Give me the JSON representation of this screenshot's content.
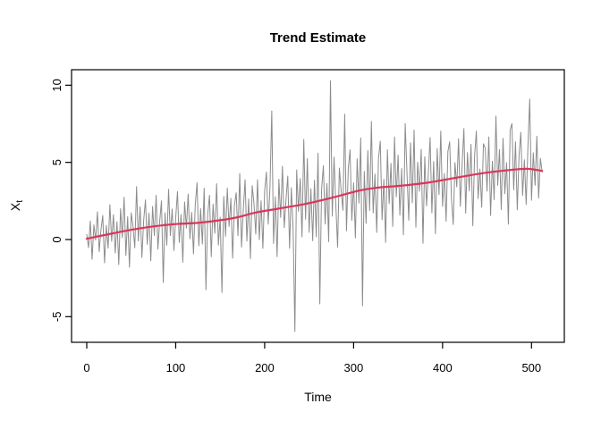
{
  "title": "Trend Estimate",
  "x_axis": {
    "label": "Time",
    "ticks": [
      0,
      100,
      200,
      300,
      400,
      500
    ]
  },
  "y_axis": {
    "label": "X",
    "label_sub": "t",
    "ticks": [
      -5,
      0,
      5,
      10
    ]
  },
  "colors": {
    "observed": "#8c8c8c",
    "trend": "#d9365b",
    "axis": "#000000",
    "background": "#ffffff"
  },
  "chart_data": {
    "type": "line",
    "title": "Trend Estimate",
    "xlabel": "Time",
    "ylabel": "X_t",
    "xlim": [
      -20,
      532
    ],
    "ylim": [
      -6.7,
      11.0
    ],
    "grid": false,
    "legend": "none",
    "x_start": 0,
    "x_step": 2,
    "n_points": 257,
    "series": [
      {
        "name": "observed",
        "style": "jagged-line",
        "color": "#8c8c8c",
        "definition": "y[i] = trend(x[i]) + noise[i]",
        "noise": [
          0.3,
          -0.6,
          1.1,
          -1.4,
          0.8,
          -0.2,
          1.6,
          -1.0,
          0.4,
          1.3,
          -1.8,
          0.6,
          -0.9,
          1.9,
          -0.5,
          1.2,
          -1.3,
          0.7,
          -2.1,
          1.5,
          -0.4,
          2.2,
          -1.6,
          0.9,
          -2.4,
          1.1,
          0.2,
          -1.2,
          2.75,
          -0.8,
          1.4,
          -1.9,
          0.5,
          1.8,
          -1.1,
          0.9,
          -2.2,
          1.3,
          -0.6,
          2.0,
          -1.5,
          0.3,
          1.6,
          -3.7,
          0.8,
          -1.3,
          2.3,
          -0.7,
          1.0,
          -1.7,
          0.4,
          2.1,
          -1.2,
          0.6,
          -2.5,
          1.4,
          -0.3,
          1.9,
          -1.0,
          0.7,
          -2.0,
          1.2,
          2.6,
          -1.5,
          0.9,
          -1.4,
          2.2,
          -4.4,
          0.5,
          1.7,
          -2.3,
          1.1,
          -0.8,
          2.4,
          -1.6,
          0.2,
          -4.7,
          1.5,
          -1.1,
          2.0,
          -0.5,
          1.3,
          -2.6,
          0.8,
          1.6,
          -1.2,
          2.8,
          -2.0,
          0.4,
          2.3,
          -1.7,
          1.0,
          -2.9,
          1.8,
          0.6,
          -1.4,
          2.1,
          -1.8,
          0.7,
          -2.4,
          1.3,
          2.5,
          -0.9,
          1.5,
          6.4,
          -2.2,
          0.8,
          -3.1,
          1.9,
          -0.6,
          2.7,
          -1.3,
          0.5,
          2.0,
          -2.7,
          1.2,
          -1.5,
          -8.15,
          2.3,
          -0.4,
          1.7,
          -2.1,
          4.2,
          -1.0,
          2.9,
          -1.9,
          0.9,
          -2.5,
          1.4,
          -2.3,
          3.1,
          -6.7,
          0.7,
          2.2,
          -1.6,
          1.0,
          -2.8,
          7.6,
          -1.2,
          2.6,
          -0.5,
          -3.3,
          1.8,
          0.3,
          -1.0,
          5.2,
          -2.4,
          1.6,
          2.8,
          -1.8,
          0.6,
          -3.0,
          2.1,
          -0.8,
          3.4,
          -7.5,
          1.2,
          -2.2,
          2.5,
          -1.4,
          4.35,
          -1.6,
          0.9,
          -2.9,
          1.9,
          3.0,
          -2.1,
          0.5,
          -3.6,
          2.4,
          -1.1,
          1.5,
          -2.6,
          3.2,
          -0.7,
          2.0,
          -1.9,
          1.1,
          -3.2,
          4.0,
          0.8,
          -2.3,
          2.7,
          -1.2,
          3.5,
          -2.8,
          1.4,
          -0.5,
          2.2,
          -3.9,
          1.7,
          -1.5,
          0.6,
          2.9,
          -2.0,
          1.3,
          -3.4,
          2.1,
          -0.9,
          3.2,
          -1.7,
          0.4,
          -2.7,
          1.8,
          2.4,
          -1.3,
          -3.0,
          1.0,
          -0.6,
          2.5,
          -1.9,
          0.8,
          3.1,
          -2.4,
          1.5,
          -1.0,
          2.0,
          -3.3,
          1.2,
          2.8,
          -1.6,
          0.3,
          -2.2,
          1.9,
          1.6,
          -1.2,
          2.3,
          -2.8,
          0.7,
          -1.8,
          3.6,
          -0.9,
          1.4,
          -2.5,
          2.1,
          -1.5,
          0.5,
          -3.5,
          2.6,
          3.0,
          -1.3,
          1.8,
          -2.6,
          0.9,
          2.4,
          -1.7,
          0.6,
          -2.3,
          1.5,
          4.55,
          -2.0,
          1.1,
          -1.0,
          2.2,
          -1.8,
          0.8,
          -0.1
        ]
      },
      {
        "name": "trend",
        "style": "smooth-line",
        "color": "#d9365b",
        "points": [
          [
            0,
            0.05
          ],
          [
            25,
            0.35
          ],
          [
            50,
            0.63
          ],
          [
            75,
            0.85
          ],
          [
            100,
            1.0
          ],
          [
            125,
            1.08
          ],
          [
            150,
            1.25
          ],
          [
            170,
            1.45
          ],
          [
            190,
            1.75
          ],
          [
            215,
            2.0
          ],
          [
            245,
            2.3
          ],
          [
            275,
            2.7
          ],
          [
            305,
            3.15
          ],
          [
            325,
            3.35
          ],
          [
            355,
            3.5
          ],
          [
            385,
            3.7
          ],
          [
            415,
            4.0
          ],
          [
            445,
            4.3
          ],
          [
            475,
            4.5
          ],
          [
            495,
            4.58
          ],
          [
            512,
            4.45
          ]
        ]
      }
    ]
  }
}
